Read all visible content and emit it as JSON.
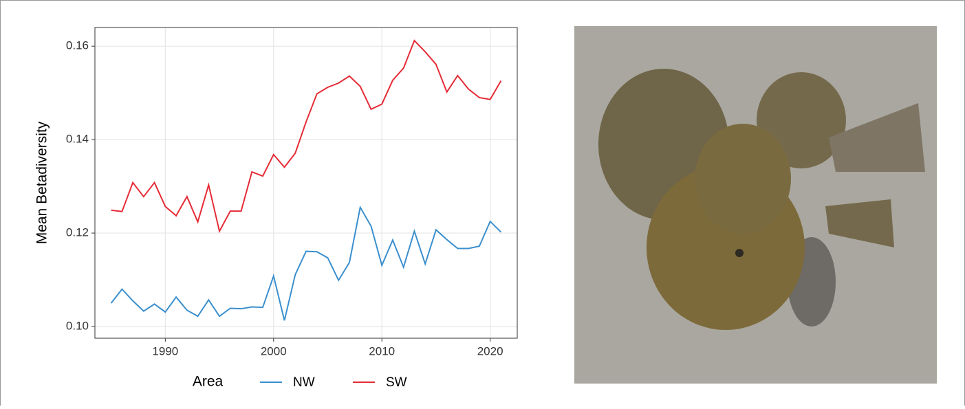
{
  "chart_data": {
    "type": "line",
    "y_label": "Mean Betadiversity",
    "legend_title": "Area",
    "legend": "bottom",
    "grid": true,
    "x": [
      1985,
      1986,
      1987,
      1988,
      1989,
      1990,
      1991,
      1992,
      1993,
      1994,
      1995,
      1996,
      1997,
      1998,
      1999,
      2000,
      2001,
      2002,
      2003,
      2004,
      2005,
      2006,
      2007,
      2008,
      2009,
      2010,
      2011,
      2012,
      2013,
      2014,
      2015,
      2016,
      2017,
      2018,
      2019,
      2020,
      2021
    ],
    "series": [
      {
        "name": "NW",
        "color": "#3a8fce",
        "values": [
          0.105,
          0.108,
          0.1055,
          0.1033,
          0.1048,
          0.1031,
          0.1063,
          0.1035,
          0.1022,
          0.1057,
          0.1022,
          0.1039,
          0.1038,
          0.1042,
          0.1041,
          0.1108,
          0.1013,
          0.1111,
          0.1161,
          0.116,
          0.1147,
          0.1099,
          0.1137,
          0.1255,
          0.1215,
          0.1131,
          0.1185,
          0.1127,
          0.1204,
          0.1134,
          0.1207,
          0.1186,
          0.1167,
          0.1167,
          0.1172,
          0.1225,
          0.1202
        ]
      },
      {
        "name": "SW",
        "color": "#e52b36",
        "values": [
          0.1249,
          0.1246,
          0.1308,
          0.1278,
          0.1308,
          0.1257,
          0.1237,
          0.1278,
          0.1224,
          0.1303,
          0.1204,
          0.1247,
          0.1247,
          0.1331,
          0.1322,
          0.1368,
          0.1341,
          0.1371,
          0.1438,
          0.1498,
          0.1512,
          0.1521,
          0.1536,
          0.1514,
          0.1465,
          0.1476,
          0.1527,
          0.1553,
          0.1612,
          0.1588,
          0.1561,
          0.1502,
          0.1537,
          0.1508,
          0.149,
          0.1486,
          0.1526
        ]
      }
    ],
    "xlim": [
      1983.5,
      2022.5
    ],
    "xticks": [
      1990,
      2000,
      2010,
      2020
    ],
    "ylim": [
      0.0975,
      0.164
    ],
    "yticks": [
      {
        "value": 0.1,
        "label": "0.10"
      },
      0.12,
      0.14,
      0.16
    ]
  }
}
